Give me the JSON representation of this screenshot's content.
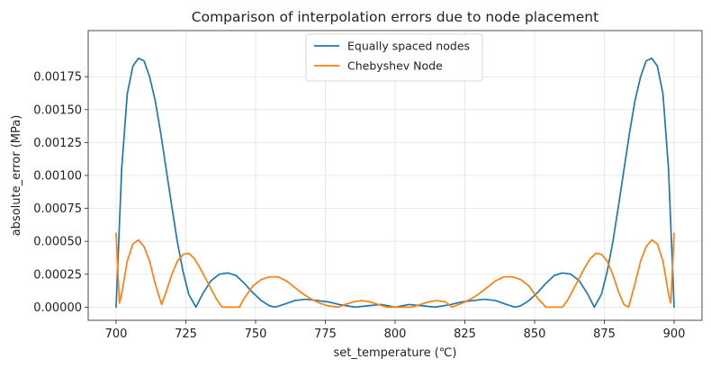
{
  "chart_data": {
    "type": "line",
    "title": "Comparison of interpolation errors due to node placement",
    "xlabel": "set_temperature (℃)",
    "ylabel": "absolute_error (MPa)",
    "xlim": [
      690,
      910
    ],
    "ylim": [
      -0.0001,
      0.0021
    ],
    "xticks": [
      700,
      725,
      750,
      775,
      800,
      825,
      850,
      875,
      900
    ],
    "xtick_labels": [
      "700",
      "725",
      "750",
      "775",
      "800",
      "825",
      "850",
      "875",
      "900"
    ],
    "yticks": [
      0,
      0.00025,
      0.0005,
      0.00075,
      0.001,
      0.00125,
      0.0015,
      0.00175
    ],
    "ytick_labels": [
      "0.00000",
      "0.00025",
      "0.00050",
      "0.00075",
      "0.00100",
      "0.00125",
      "0.00150",
      "0.00175"
    ],
    "grid": true,
    "legend_position": "top-center",
    "series": [
      {
        "name": "Equally spaced nodes",
        "color": "#1f77b4",
        "x": [
          700,
          702,
          704,
          706,
          708,
          710,
          712,
          714,
          716,
          718,
          720,
          722,
          724,
          726,
          728.6,
          731,
          734,
          737,
          740,
          743,
          746,
          749,
          752,
          755,
          757.1,
          760,
          764,
          768,
          772,
          776,
          780,
          785.7,
          790,
          795,
          800,
          805,
          810,
          814.3,
          820,
          824,
          828,
          832,
          836,
          840,
          842.9,
          845,
          848,
          851,
          854,
          857,
          860,
          863,
          866,
          869,
          871.4,
          874,
          876,
          878,
          880,
          882,
          884,
          886,
          888,
          890,
          892,
          894,
          896,
          898,
          900
        ],
        "y": [
          0.0,
          0.00105,
          0.00162,
          0.00183,
          0.00189,
          0.00187,
          0.00175,
          0.00157,
          0.00132,
          0.00104,
          0.00076,
          0.00049,
          0.00027,
          0.0001,
          0.0,
          0.0001,
          0.0002,
          0.00025,
          0.00026,
          0.00024,
          0.00018,
          0.00011,
          5e-05,
          1e-05,
          0.0,
          2e-05,
          5e-05,
          6e-05,
          5e-05,
          4e-05,
          2e-05,
          0.0,
          1e-05,
          2e-05,
          0.0,
          2e-05,
          1e-05,
          0.0,
          2e-05,
          4e-05,
          5e-05,
          6e-05,
          5e-05,
          2e-05,
          0.0,
          1e-05,
          5e-05,
          0.00011,
          0.00018,
          0.00024,
          0.00026,
          0.00025,
          0.0002,
          0.0001,
          0.0,
          0.0001,
          0.00027,
          0.00049,
          0.00076,
          0.00104,
          0.00132,
          0.00157,
          0.00175,
          0.00187,
          0.00189,
          0.00183,
          0.00162,
          0.00105,
          0.0
        ]
      },
      {
        "name": "Chebyshev Node",
        "color": "#ff7f0e",
        "x": [
          700,
          701.2,
          702,
          704,
          706,
          708,
          710,
          712,
          714,
          716.3,
          718,
          720,
          722,
          724,
          726,
          728,
          730,
          732,
          734,
          736,
          738,
          740,
          742,
          744.2,
          746,
          749,
          752,
          755,
          758,
          761,
          764,
          767,
          770,
          773,
          776,
          779.6,
          782,
          785,
          788,
          791,
          794,
          797,
          800,
          803,
          806,
          809,
          812,
          815,
          818,
          820.4,
          824,
          827,
          830,
          833,
          836,
          839,
          842,
          845,
          848,
          851,
          854,
          855.8,
          858,
          860,
          862,
          864,
          866,
          868,
          870,
          872,
          874,
          876,
          878,
          880,
          882,
          883.7,
          886,
          888,
          890,
          892,
          894,
          896,
          898,
          898.8,
          900
        ],
        "y": [
          0.00056,
          3e-05,
          0.0001,
          0.00035,
          0.00048,
          0.00051,
          0.00046,
          0.00035,
          0.00018,
          2e-05,
          0.00012,
          0.00025,
          0.00035,
          0.0004,
          0.00041,
          0.00037,
          0.0003,
          0.00022,
          0.00014,
          6e-05,
          0.0,
          0.0,
          0.0,
          0.0,
          7e-05,
          0.00016,
          0.00021,
          0.00023,
          0.00023,
          0.0002,
          0.00015,
          0.0001,
          6e-05,
          3e-05,
          1e-05,
          0.0,
          2e-05,
          4e-05,
          5e-05,
          4e-05,
          2e-05,
          0.0,
          0.0,
          0.0,
          0.0,
          2e-05,
          4e-05,
          5e-05,
          4e-05,
          0.0,
          3e-05,
          6e-05,
          0.0001,
          0.00015,
          0.0002,
          0.00023,
          0.00023,
          0.00021,
          0.00016,
          7e-05,
          0.0,
          0.0,
          0.0,
          0.0,
          6e-05,
          0.00014,
          0.00022,
          0.0003,
          0.00037,
          0.00041,
          0.0004,
          0.00035,
          0.00025,
          0.00012,
          2e-05,
          0.0,
          0.00018,
          0.00035,
          0.00046,
          0.00051,
          0.00048,
          0.00035,
          0.0001,
          3e-05,
          0.00056
        ]
      }
    ]
  }
}
